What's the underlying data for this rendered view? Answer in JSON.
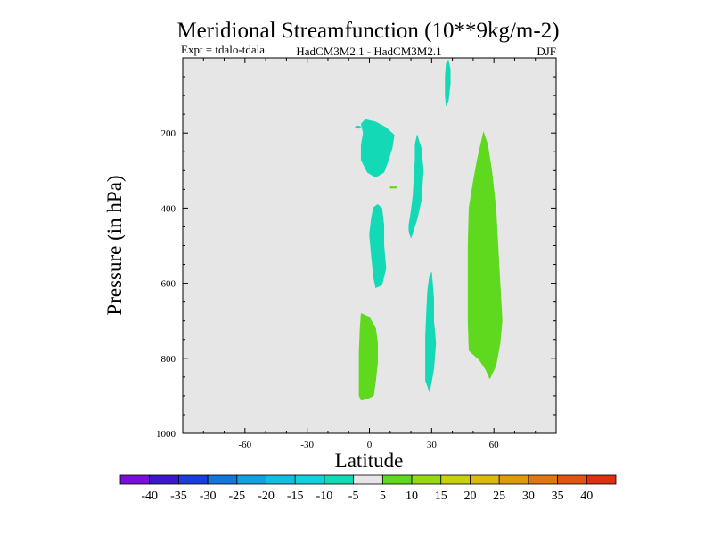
{
  "chart_data": {
    "type": "heatmap",
    "title": "Meridional Streamfunction (10**9kg/m-2)",
    "subtitle_left": "Expt = tdalo-tdala",
    "subtitle_center": "HadCM3M2.1 - HadCM3M2.1",
    "subtitle_right": "DJF",
    "xlabel": "Latitude",
    "ylabel": "Pressure (in hPa)",
    "xlim": [
      -90,
      90
    ],
    "ylim": [
      0,
      1000
    ],
    "x_ticks": [
      -60,
      -30,
      0,
      30,
      60
    ],
    "y_ticks": [
      200,
      400,
      600,
      800,
      1000
    ],
    "background_color": "#e6e6e6",
    "colorbar": {
      "levels": [
        -45,
        -40,
        -35,
        -30,
        -25,
        -20,
        -15,
        -10,
        -5,
        5,
        10,
        15,
        20,
        25,
        30,
        35,
        40,
        45
      ],
      "labels": [
        "-40",
        "-35",
        "-30",
        "-25",
        "-20",
        "-15",
        "-10",
        "-5",
        "5",
        "10",
        "15",
        "20",
        "25",
        "30",
        "35",
        "40"
      ],
      "colors": [
        "#7a10d8",
        "#3c18c8",
        "#1b3dd8",
        "#1376dc",
        "#14a0e0",
        "#13bde0",
        "#14d0dc",
        "#14d9b6",
        "#e6e6e6",
        "#5fd91e",
        "#97d812",
        "#c6d010",
        "#dcb810",
        "#df9a10",
        "#e07810",
        "#e05510",
        "#dc3010"
      ]
    },
    "regions": [
      {
        "name": "cyan-upper-left",
        "color": "#14d9b6",
        "points": [
          [
            -2,
            164
          ],
          [
            3,
            170
          ],
          [
            8,
            185
          ],
          [
            12,
            205
          ],
          [
            11,
            240
          ],
          [
            9,
            275
          ],
          [
            7,
            305
          ],
          [
            3,
            318
          ],
          [
            -1,
            305
          ],
          [
            -4,
            272
          ],
          [
            -4,
            232
          ],
          [
            -3,
            200
          ],
          [
            -4,
            175
          ]
        ]
      },
      {
        "name": "cyan-speck",
        "color": "#14d9b6",
        "points": [
          [
            -6,
            180
          ],
          [
            -4,
            183
          ],
          [
            -5,
            188
          ],
          [
            -7,
            185
          ]
        ]
      },
      {
        "name": "cyan-mid-left",
        "color": "#14d9b6",
        "points": [
          [
            4,
            390
          ],
          [
            6,
            400
          ],
          [
            7,
            445
          ],
          [
            7,
            500
          ],
          [
            8,
            560
          ],
          [
            6,
            605
          ],
          [
            3,
            612
          ],
          [
            2,
            585
          ],
          [
            1,
            530
          ],
          [
            0,
            470
          ],
          [
            1,
            425
          ],
          [
            2,
            398
          ]
        ]
      },
      {
        "name": "cyan-mid-center",
        "color": "#14d9b6",
        "points": [
          [
            23,
            205
          ],
          [
            25,
            240
          ],
          [
            26,
            300
          ],
          [
            25,
            380
          ],
          [
            23,
            430
          ],
          [
            20,
            480
          ],
          [
            19,
            460
          ],
          [
            19,
            445
          ],
          [
            20,
            410
          ],
          [
            21,
            365
          ],
          [
            21.5,
            320
          ],
          [
            22,
            270
          ],
          [
            22,
            230
          ]
        ]
      },
      {
        "name": "cyan-top",
        "color": "#14d9b6",
        "points": [
          [
            38,
            5
          ],
          [
            39,
            30
          ],
          [
            39,
            70
          ],
          [
            38,
            115
          ],
          [
            37,
            128
          ],
          [
            36.5,
            100
          ],
          [
            36.5,
            50
          ],
          [
            37,
            15
          ]
        ]
      },
      {
        "name": "cyan-lower",
        "color": "#14d9b6",
        "points": [
          [
            30,
            570
          ],
          [
            31,
            640
          ],
          [
            31,
            700
          ],
          [
            32,
            760
          ],
          [
            31,
            830
          ],
          [
            29,
            890
          ],
          [
            27,
            860
          ],
          [
            27,
            800
          ],
          [
            27,
            740
          ],
          [
            27.5,
            680
          ],
          [
            28,
            620
          ],
          [
            29,
            580
          ]
        ]
      },
      {
        "name": "green-lower-left",
        "color": "#5fd91e",
        "points": [
          [
            -4,
            680
          ],
          [
            0,
            690
          ],
          [
            3,
            720
          ],
          [
            4,
            760
          ],
          [
            4,
            810
          ],
          [
            3,
            860
          ],
          [
            2,
            900
          ],
          [
            -1,
            908
          ],
          [
            -4,
            912
          ],
          [
            -5,
            900
          ],
          [
            -5,
            850
          ],
          [
            -5,
            780
          ],
          [
            -4.5,
            720
          ]
        ]
      },
      {
        "name": "green-speck",
        "color": "#5fd91e",
        "points": [
          [
            10,
            343
          ],
          [
            13,
            343
          ],
          [
            13,
            347
          ],
          [
            10,
            347
          ]
        ]
      },
      {
        "name": "green-right",
        "color": "#5fd91e",
        "points": [
          [
            55,
            197
          ],
          [
            57,
            230
          ],
          [
            59,
            300
          ],
          [
            61,
            400
          ],
          [
            62,
            500
          ],
          [
            63,
            600
          ],
          [
            64,
            700
          ],
          [
            63,
            760
          ],
          [
            61,
            820
          ],
          [
            58,
            855
          ],
          [
            56,
            830
          ],
          [
            53,
            805
          ],
          [
            50,
            790
          ],
          [
            48,
            780
          ],
          [
            47.5,
            700
          ],
          [
            47.5,
            600
          ],
          [
            47.5,
            500
          ],
          [
            48,
            400
          ],
          [
            50,
            330
          ],
          [
            52,
            270
          ]
        ]
      }
    ]
  }
}
